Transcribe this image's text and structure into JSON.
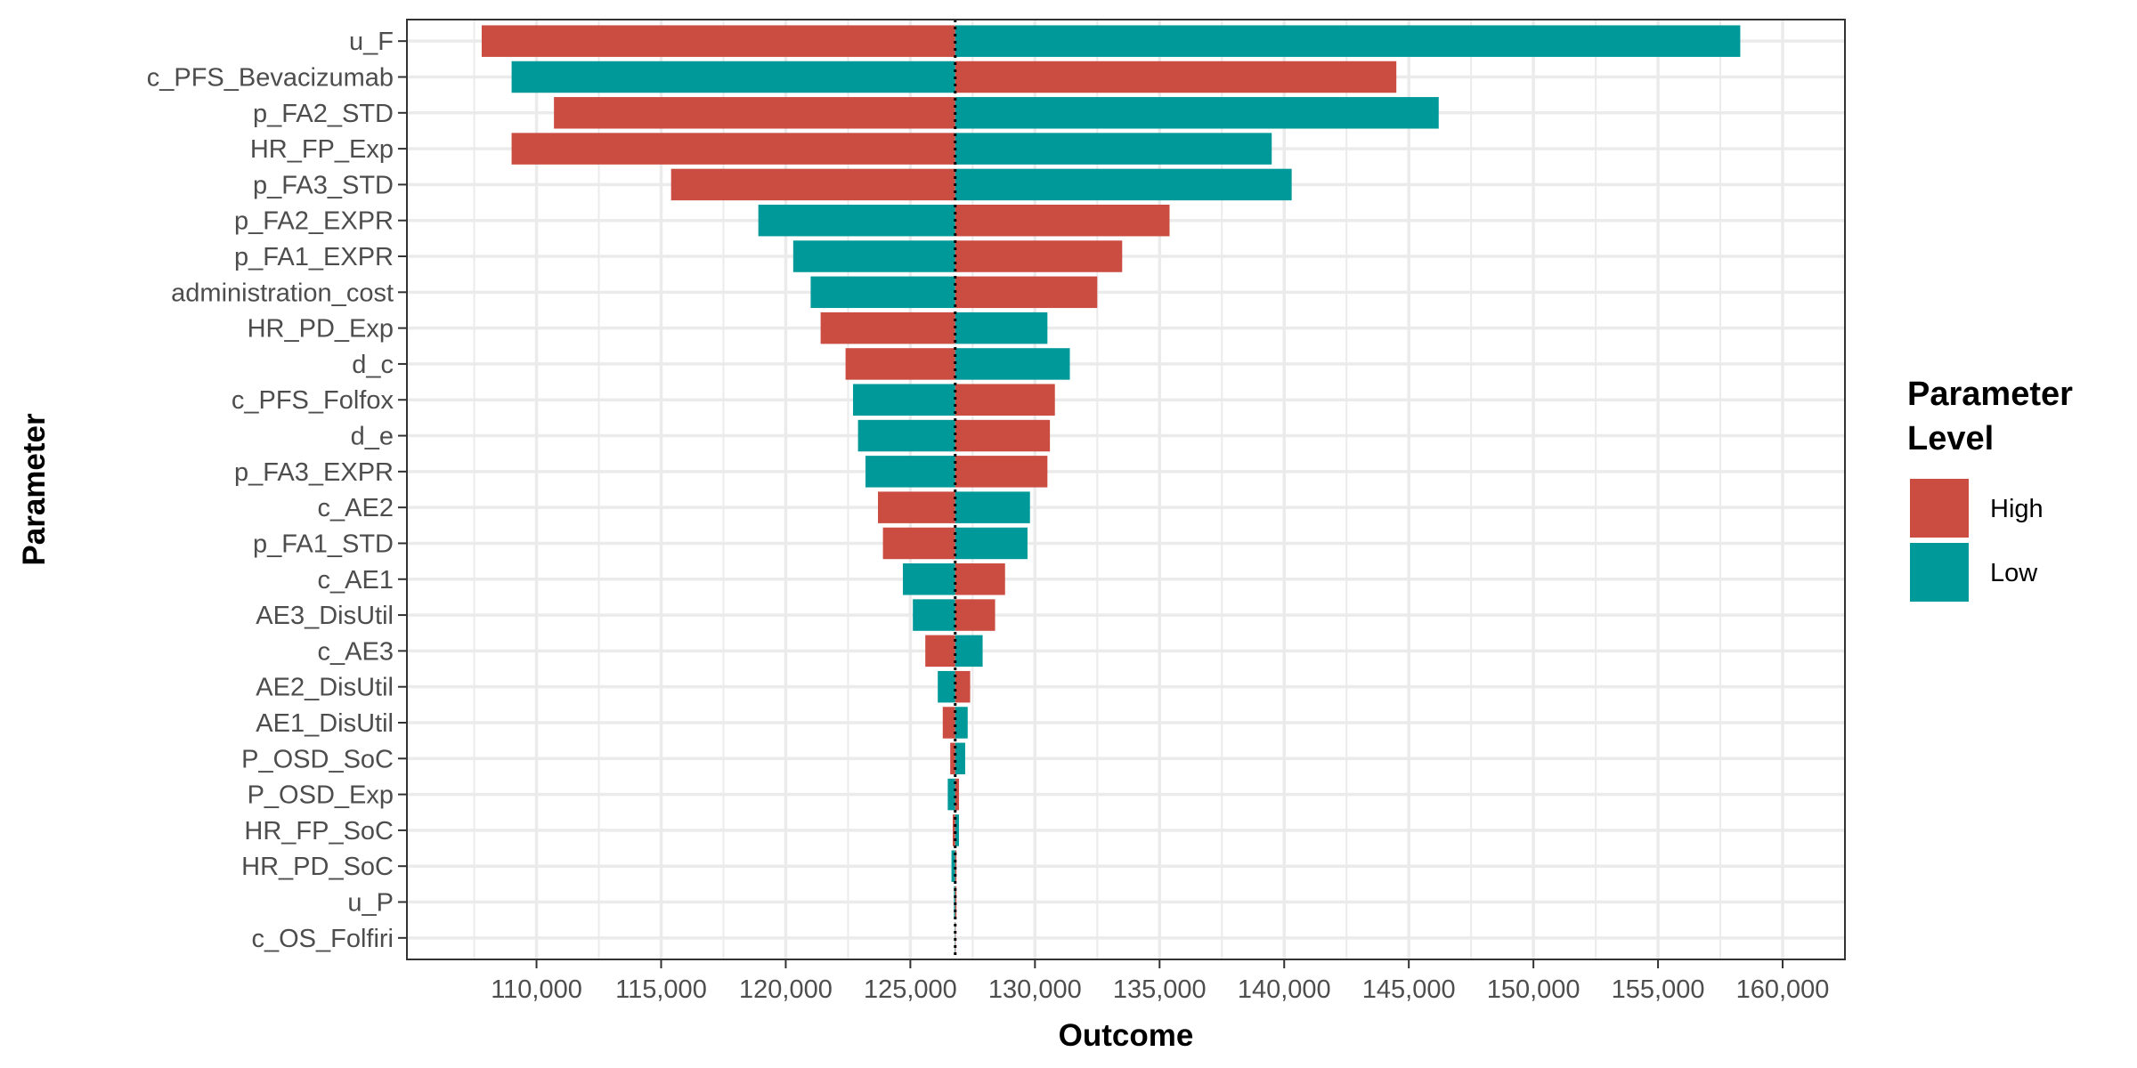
{
  "chart_data": {
    "type": "bar",
    "orientation": "horizontal",
    "xlabel": "Outcome",
    "ylabel": "Parameter",
    "xlim": [
      104800,
      162500
    ],
    "x_ticks": [
      110000,
      115000,
      120000,
      125000,
      130000,
      135000,
      140000,
      145000,
      150000,
      155000,
      160000
    ],
    "x_tick_labels": [
      "110,000",
      "115,000",
      "120,000",
      "125,000",
      "130,000",
      "135,000",
      "140,000",
      "145,000",
      "150,000",
      "155,000",
      "160,000"
    ],
    "base_value": 126800,
    "grid": true,
    "legend_position": "right",
    "legend": {
      "title_lines": [
        "Parameter",
        "Level"
      ],
      "entries": [
        {
          "level": "High",
          "label": "High",
          "color": "#CB4C41"
        },
        {
          "level": "Low",
          "label": "Low",
          "color": "#009999"
        }
      ]
    },
    "rows": [
      {
        "parameter": "u_F",
        "low_end": 107800,
        "low_end_level": "High",
        "high_end": 158300,
        "high_end_level": "Low"
      },
      {
        "parameter": "c_PFS_Bevacizumab",
        "low_end": 109000,
        "low_end_level": "Low",
        "high_end": 144500,
        "high_end_level": "High"
      },
      {
        "parameter": "p_FA2_STD",
        "low_end": 110700,
        "low_end_level": "High",
        "high_end": 146200,
        "high_end_level": "Low"
      },
      {
        "parameter": "HR_FP_Exp",
        "low_end": 109000,
        "low_end_level": "High",
        "high_end": 139500,
        "high_end_level": "Low"
      },
      {
        "parameter": "p_FA3_STD",
        "low_end": 115400,
        "low_end_level": "High",
        "high_end": 140300,
        "high_end_level": "Low"
      },
      {
        "parameter": "p_FA2_EXPR",
        "low_end": 118900,
        "low_end_level": "Low",
        "high_end": 135400,
        "high_end_level": "High"
      },
      {
        "parameter": "p_FA1_EXPR",
        "low_end": 120300,
        "low_end_level": "Low",
        "high_end": 133500,
        "high_end_level": "High"
      },
      {
        "parameter": "administration_cost",
        "low_end": 121000,
        "low_end_level": "Low",
        "high_end": 132500,
        "high_end_level": "High"
      },
      {
        "parameter": "HR_PD_Exp",
        "low_end": 121400,
        "low_end_level": "High",
        "high_end": 130500,
        "high_end_level": "Low"
      },
      {
        "parameter": "d_c",
        "low_end": 122400,
        "low_end_level": "High",
        "high_end": 131400,
        "high_end_level": "Low"
      },
      {
        "parameter": "c_PFS_Folfox",
        "low_end": 122700,
        "low_end_level": "Low",
        "high_end": 130800,
        "high_end_level": "High"
      },
      {
        "parameter": "d_e",
        "low_end": 122900,
        "low_end_level": "Low",
        "high_end": 130600,
        "high_end_level": "High"
      },
      {
        "parameter": "p_FA3_EXPR",
        "low_end": 123200,
        "low_end_level": "Low",
        "high_end": 130500,
        "high_end_level": "High"
      },
      {
        "parameter": "c_AE2",
        "low_end": 123700,
        "low_end_level": "High",
        "high_end": 129800,
        "high_end_level": "Low"
      },
      {
        "parameter": "p_FA1_STD",
        "low_end": 123900,
        "low_end_level": "High",
        "high_end": 129700,
        "high_end_level": "Low"
      },
      {
        "parameter": "c_AE1",
        "low_end": 124700,
        "low_end_level": "Low",
        "high_end": 128800,
        "high_end_level": "High"
      },
      {
        "parameter": "AE3_DisUtil",
        "low_end": 125100,
        "low_end_level": "Low",
        "high_end": 128400,
        "high_end_level": "High"
      },
      {
        "parameter": "c_AE3",
        "low_end": 125600,
        "low_end_level": "High",
        "high_end": 127900,
        "high_end_level": "Low"
      },
      {
        "parameter": "AE2_DisUtil",
        "low_end": 126100,
        "low_end_level": "Low",
        "high_end": 127400,
        "high_end_level": "High"
      },
      {
        "parameter": "AE1_DisUtil",
        "low_end": 126300,
        "low_end_level": "High",
        "high_end": 127300,
        "high_end_level": "Low"
      },
      {
        "parameter": "P_OSD_SoC",
        "low_end": 126600,
        "low_end_level": "High",
        "high_end": 127200,
        "high_end_level": "Low"
      },
      {
        "parameter": "P_OSD_Exp",
        "low_end": 126500,
        "low_end_level": "Low",
        "high_end": 126950,
        "high_end_level": "High"
      },
      {
        "parameter": "HR_FP_SoC",
        "low_end": 126700,
        "low_end_level": "High",
        "high_end": 126950,
        "high_end_level": "Low"
      },
      {
        "parameter": "HR_PD_SoC",
        "low_end": 126650,
        "low_end_level": "Low",
        "high_end": 126850,
        "high_end_level": "High"
      },
      {
        "parameter": "u_P",
        "low_end": 126750,
        "low_end_level": "Low",
        "high_end": 126850,
        "high_end_level": "High"
      },
      {
        "parameter": "c_OS_Folfiri",
        "low_end": 126780,
        "low_end_level": "Low",
        "high_end": 126820,
        "high_end_level": "High"
      }
    ]
  }
}
